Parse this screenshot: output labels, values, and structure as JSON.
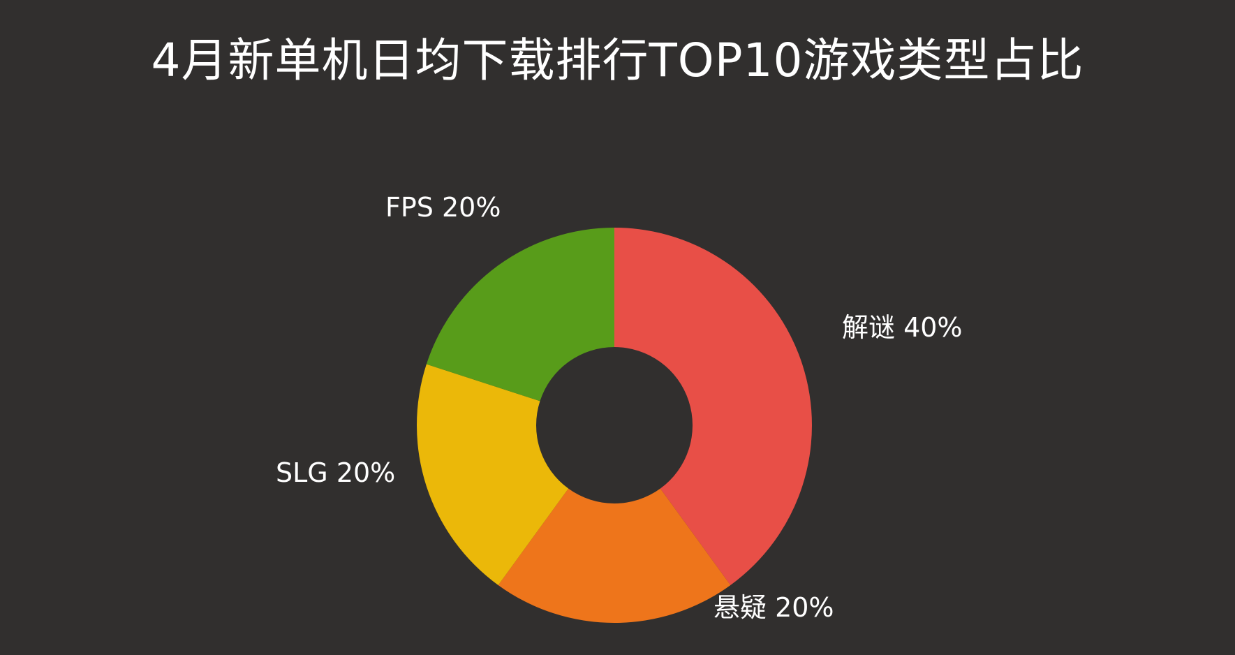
{
  "chart_data": {
    "type": "pie",
    "title": "4月新单机日均下载排行TOP10游戏类型占比",
    "donut": true,
    "categories": [
      "解谜",
      "悬疑",
      "SLG",
      "FPS"
    ],
    "values": [
      40,
      20,
      20,
      20
    ],
    "labels": [
      "解谜 40%",
      "悬疑 20%",
      "SLG 20%",
      "FPS 20%"
    ],
    "colors": [
      "#e84f47",
      "#ee751b",
      "#ebb809",
      "#589c1a"
    ],
    "background": "#312f2e"
  }
}
